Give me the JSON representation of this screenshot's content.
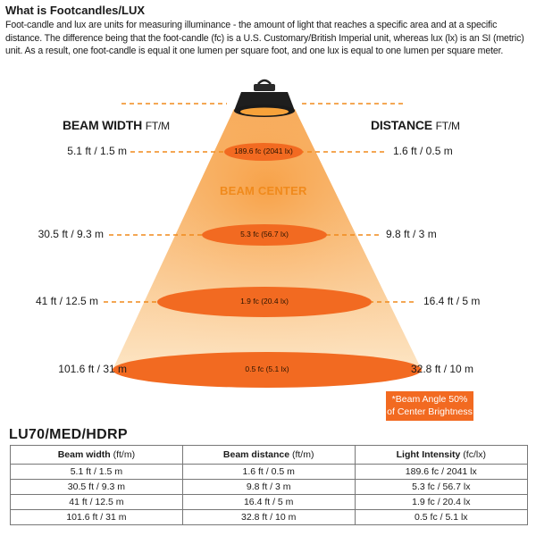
{
  "intro": {
    "title": "What is Footcandles/LUX",
    "body": "Foot-candle and lux are units for measuring illuminance - the amount of light that reaches a specific area and at a specific distance. The difference being that the foot-candle (fc) is a U.S. Customary/British Imperial unit, whereas lux (lx) is an SI (metric) unit. As a result, one foot-candle is equal it one lumen per square foot, and one lux is equal to one lumen per square meter."
  },
  "diagram": {
    "beam_width_title": "BEAM WIDTH",
    "beam_width_unit": "FT/M",
    "distance_title": "DISTANCE",
    "distance_unit": "FT/M",
    "beam_center": "BEAM CENTER",
    "note_line1": "*Beam Angle 50%",
    "note_line2": "of Center Brightness",
    "colors": {
      "beam_light": "#fde5c4",
      "beam_dark": "#f59a3c",
      "ellipse": "#f26a21",
      "accent": "#f08a1c"
    },
    "levels": [
      {
        "width": "5.1 ft / 1.5 m",
        "intensity": "189.6 fc (2041 lx)",
        "distance": "1.6 ft / 0.5 m"
      },
      {
        "width": "30.5 ft / 9.3 m",
        "intensity": "5.3 fc (56.7 lx)",
        "distance": "9.8 ft / 3 m"
      },
      {
        "width": "41 ft / 12.5 m",
        "intensity": "1.9 fc (20.4 lx)",
        "distance": "16.4 ft / 5 m"
      },
      {
        "width": "101.6 ft / 31 m",
        "intensity": "0.5 fc (5.1 lx)",
        "distance": "32.8 ft / 10 m"
      }
    ]
  },
  "table": {
    "model": "LU70/MED/HDRP",
    "headers": [
      {
        "label": "Beam width",
        "unit": "(ft/m)"
      },
      {
        "label": "Beam distance",
        "unit": "(ft/m)"
      },
      {
        "label": "Light Intensity",
        "unit": "(fc/lx)"
      }
    ],
    "rows": [
      [
        "5.1 ft / 1.5 m",
        "1.6 ft / 0.5 m",
        "189.6 fc / 2041 lx"
      ],
      [
        "30.5 ft / 9.3 m",
        "9.8 ft / 3 m",
        "5.3 fc / 56.7 lx"
      ],
      [
        "41 ft / 12.5 m",
        "16.4 ft / 5 m",
        "1.9 fc / 20.4 lx"
      ],
      [
        "101.6 ft / 31 m",
        "32.8 ft / 10 m",
        "0.5 fc / 5.1 lx"
      ]
    ]
  }
}
